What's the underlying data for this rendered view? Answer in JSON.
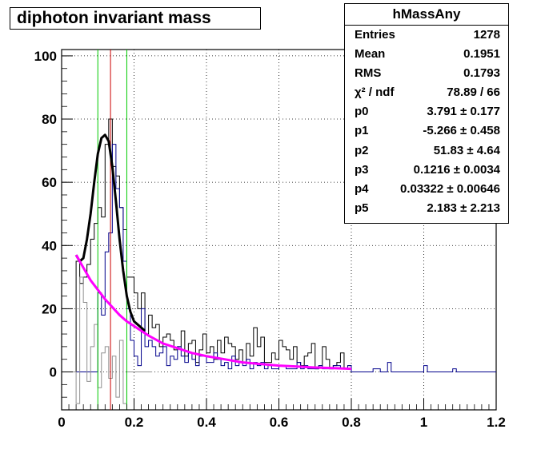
{
  "title": "diphoton invariant mass",
  "stats": {
    "name": "hMassAny",
    "rows": [
      {
        "key": "Entries",
        "value": "1278"
      },
      {
        "key": "Mean",
        "value": "0.1951"
      },
      {
        "key": "RMS",
        "value": "0.1793"
      },
      {
        "key": "χ² / ndf",
        "value": "78.89 / 66"
      },
      {
        "key": "p0",
        "value": "3.791 ± 0.177"
      },
      {
        "key": "p1",
        "value": "-5.266 ± 0.458"
      },
      {
        "key": "p2",
        "value": "51.83 ± 4.64"
      },
      {
        "key": "p3",
        "value": "0.1216 ± 0.0034"
      },
      {
        "key": "p4",
        "value": "0.03322 ± 0.00646"
      },
      {
        "key": "p5",
        "value": "2.183 ± 2.213"
      }
    ]
  },
  "chart_data": {
    "type": "histogram",
    "title": "diphoton invariant mass",
    "xlim": [
      0,
      1.2
    ],
    "ylim": [
      -12,
      102
    ],
    "xticks": [
      0,
      0.2,
      0.4,
      0.6,
      0.8,
      1,
      1.2
    ],
    "xtick_labels": [
      "0",
      "0.2",
      "0.4",
      "0.6",
      "0.8",
      "1",
      "1.2"
    ],
    "yticks": [
      0,
      20,
      40,
      60,
      80,
      100
    ],
    "ytick_labels": [
      "0",
      "20",
      "40",
      "60",
      "80",
      "100"
    ],
    "grid": true,
    "bin_width": 0.01,
    "x_start": 0,
    "vertical_lines": [
      {
        "x": 0.1,
        "color": "#00cc00"
      },
      {
        "x": 0.135,
        "color": "#cc0000"
      },
      {
        "x": 0.18,
        "color": "#00cc00"
      }
    ],
    "series": [
      {
        "style": "black-histogram",
        "color": "#000000",
        "values": [
          0,
          0,
          0,
          0,
          35,
          28,
          30,
          34,
          42,
          47,
          52,
          49,
          72,
          80,
          65,
          62,
          52,
          45,
          30,
          30,
          25,
          20,
          25,
          12,
          18,
          14,
          15,
          8,
          11,
          12,
          10,
          7,
          8,
          13,
          5,
          9,
          10,
          3,
          7,
          12,
          6,
          8,
          4,
          10,
          6,
          11,
          9,
          8,
          4,
          7,
          3,
          9,
          5,
          14,
          8,
          11,
          3,
          3,
          6,
          4,
          10,
          8,
          7,
          4,
          8,
          3,
          2,
          5,
          6,
          9,
          1,
          2,
          8,
          4,
          1,
          2,
          3,
          6,
          1,
          2,
          0
        ]
      },
      {
        "style": "blue-histogram",
        "color": "#00008b",
        "values": [
          0,
          0,
          0,
          0,
          0,
          0,
          0,
          0,
          0,
          0,
          25,
          18,
          38,
          44,
          72,
          58,
          52,
          35,
          20,
          10,
          5,
          2,
          20,
          8,
          10,
          8,
          5,
          6,
          8,
          2,
          5,
          4,
          8,
          5,
          3,
          6,
          4,
          2,
          5,
          5,
          3,
          3,
          6,
          4,
          2,
          3,
          1,
          5,
          2,
          3,
          2,
          4,
          1,
          3,
          2,
          3,
          1,
          2,
          1,
          1,
          2,
          2,
          1,
          1,
          1,
          3,
          1,
          2,
          1,
          1,
          1,
          2,
          1,
          1,
          1,
          2,
          2,
          1,
          1,
          2,
          0,
          0,
          0,
          0,
          0,
          0,
          1,
          1,
          0,
          0,
          3,
          0,
          0,
          0,
          0,
          0,
          0,
          0,
          0,
          0,
          2,
          0,
          0,
          0,
          0,
          0,
          0,
          0,
          1,
          0,
          0,
          0,
          0,
          0,
          0,
          0,
          0,
          0,
          0,
          0
        ]
      },
      {
        "style": "grey-histogram",
        "color": "#909090",
        "values": [
          0,
          0,
          0,
          0,
          -10,
          30,
          22,
          -3,
          8,
          15,
          -5,
          6,
          8,
          -2,
          5,
          -8,
          10,
          -10,
          0,
          0,
          0,
          0,
          0,
          0,
          0
        ]
      }
    ],
    "curves": [
      {
        "name": "total fit",
        "color": "#000000",
        "x": [
          0.04,
          0.05,
          0.06,
          0.07,
          0.08,
          0.09,
          0.1,
          0.11,
          0.12,
          0.13,
          0.14,
          0.15,
          0.16,
          0.17,
          0.18,
          0.19,
          0.2,
          0.21,
          0.22,
          0.23
        ],
        "y": [
          37,
          35,
          36,
          42,
          50,
          60,
          69,
          74,
          75,
          73,
          65,
          54,
          42,
          32,
          24,
          19,
          16,
          15,
          14,
          13
        ]
      },
      {
        "name": "background fit",
        "color": "#ff00ff",
        "x": [
          0.04,
          0.06,
          0.08,
          0.1,
          0.12,
          0.14,
          0.16,
          0.18,
          0.2,
          0.24,
          0.28,
          0.32,
          0.36,
          0.4,
          0.45,
          0.5,
          0.55,
          0.6,
          0.65,
          0.7,
          0.75,
          0.8
        ],
        "y": [
          37,
          33,
          29,
          26,
          23,
          20.5,
          18,
          16,
          14.5,
          11.5,
          9,
          7.5,
          6,
          5,
          4,
          3,
          2.5,
          2,
          1.7,
          1.4,
          1.2,
          1
        ]
      }
    ]
  }
}
